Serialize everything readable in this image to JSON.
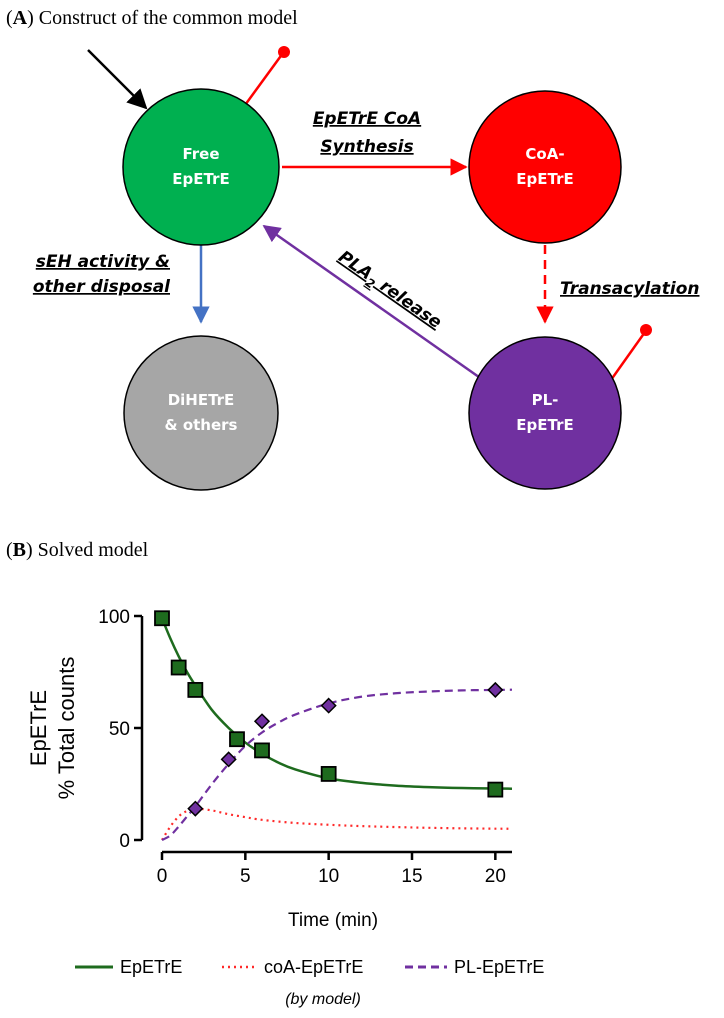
{
  "panel_a": {
    "label": "A",
    "title": ") Construct of the common model",
    "nodes": {
      "free": {
        "line1": "Free",
        "line2": "EpETrE",
        "color": "#00b050"
      },
      "coa": {
        "line1": "CoA-",
        "line2": "EpETrE",
        "color": "#ff0000"
      },
      "dihetre": {
        "line1": "DiHETrE",
        "line2": "& others",
        "color": "#a6a6a6"
      },
      "pl": {
        "line1": "PL-",
        "line2": "EpETrE",
        "color": "#7030a0"
      }
    },
    "edges": {
      "synthesis_line1": "EpETrE CoA",
      "synthesis_line2": "Synthesis",
      "seh_line1": "sEH activity &",
      "seh_line2": "other disposal",
      "pla2_prefix": "PLA",
      "pla2_sub": "2",
      "pla2_suffix": " release",
      "transacylation": "Transacylation"
    }
  },
  "panel_b": {
    "label": "B",
    "title": ") Solved model",
    "legend_note": "(by model)"
  },
  "chart_data": {
    "type": "line",
    "xlabel": "Time (min)",
    "ylabel_line1": "EpETrE",
    "ylabel_line2": "% Total counts",
    "xlim": [
      0,
      21
    ],
    "ylim": [
      0,
      100
    ],
    "x_ticks": [
      0,
      5,
      10,
      15,
      20
    ],
    "y_ticks": [
      0,
      50,
      100
    ],
    "grid": false,
    "legend_position": "bottom",
    "series": [
      {
        "name": "EpETrE",
        "kind": "model-line",
        "style": "solid",
        "color": "#1e6b1e",
        "x": [
          0,
          0.5,
          1,
          1.5,
          2,
          3,
          4,
          5,
          6,
          7,
          8,
          10,
          12,
          14,
          16,
          18,
          20,
          21
        ],
        "y": [
          99,
          90,
          82,
          75,
          69,
          58,
          50,
          43.5,
          38.5,
          34.5,
          31.5,
          27.5,
          25.5,
          24.3,
          23.6,
          23.2,
          23,
          22.9
        ]
      },
      {
        "name": "coA-EpETrE",
        "kind": "model-line",
        "style": "dotted",
        "color": "#ff2a2a",
        "x": [
          0,
          0.5,
          1,
          1.5,
          2,
          3,
          4,
          5,
          6,
          8,
          10,
          12,
          15,
          18,
          21
        ],
        "y": [
          0,
          6,
          10.5,
          13,
          14,
          13.2,
          11.5,
          10.2,
          9,
          7.6,
          6.8,
          6.2,
          5.6,
          5.2,
          5
        ]
      },
      {
        "name": "PL-EpETrE",
        "kind": "model-line",
        "style": "dashed",
        "color": "#7030a0",
        "x": [
          0,
          0.5,
          1,
          1.5,
          2,
          3,
          4,
          5,
          6,
          7,
          8,
          10,
          12,
          14,
          16,
          18,
          20,
          21
        ],
        "y": [
          0,
          2,
          6,
          10.5,
          15,
          25,
          34,
          42,
          48,
          52.5,
          56,
          61,
          64,
          65.5,
          66.3,
          66.8,
          67,
          67.1
        ]
      },
      {
        "name": "EpETrE",
        "kind": "observed",
        "marker": "square",
        "color": "#1e6b1e",
        "x": [
          0,
          1,
          2,
          4.5,
          6,
          10,
          20
        ],
        "y": [
          99,
          77,
          67,
          45,
          40,
          29.5,
          22.5
        ]
      },
      {
        "name": "PL-EpETrE",
        "kind": "observed",
        "marker": "diamond",
        "color": "#7030a0",
        "x": [
          2,
          4,
          6,
          10,
          20
        ],
        "y": [
          14,
          36,
          53,
          60,
          67
        ]
      }
    ]
  }
}
